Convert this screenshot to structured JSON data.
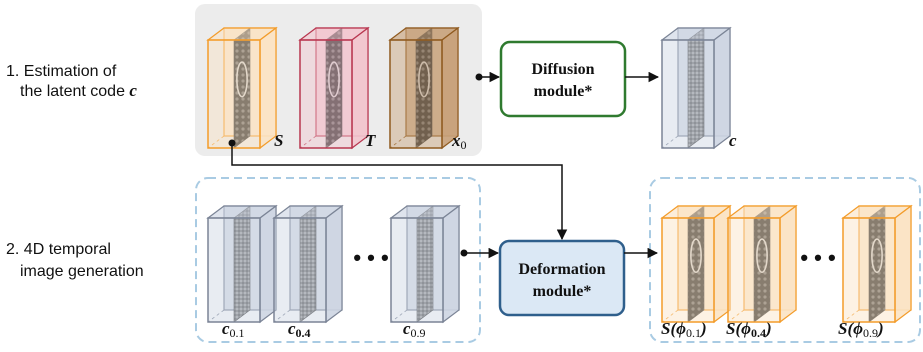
{
  "sections": {
    "estimation_line1": "1. Estimation of",
    "estimation_line2": "the latent code",
    "estimation_var": "c",
    "generation_line1": "2. 4D temporal",
    "generation_line2": "image generation"
  },
  "modules": {
    "diffusion_line1": "Diffusion",
    "diffusion_line2": "module*",
    "deformation_line1": "Deformation",
    "deformation_line2": "module*"
  },
  "inputs": {
    "s": "S",
    "t": "T",
    "x_base": "x",
    "x_sub": "0"
  },
  "output_latent": "c",
  "latents": [
    {
      "base": "c",
      "sub": "0.1"
    },
    {
      "base": "c",
      "sub": "0.4"
    },
    {
      "base": "c",
      "sub": "0.9"
    }
  ],
  "outputs": [
    {
      "prefix": "S(",
      "phi": "ϕ",
      "sub": "0.1",
      "suffix": ")"
    },
    {
      "prefix": "S(",
      "phi": "ϕ",
      "sub": "0.4",
      "suffix": ")"
    },
    {
      "prefix": "S(",
      "phi": "ϕ",
      "sub": "0.9",
      "suffix": ")"
    }
  ],
  "ellipsis": "• • •",
  "colors": {
    "orange": "#f39c2a",
    "crimson": "#b8364f",
    "brown": "#8f5a1f",
    "slate": "#7b8496",
    "green": "#2f7a2f",
    "blue": "#2f5f8c",
    "dash": "#a9cbe3"
  }
}
